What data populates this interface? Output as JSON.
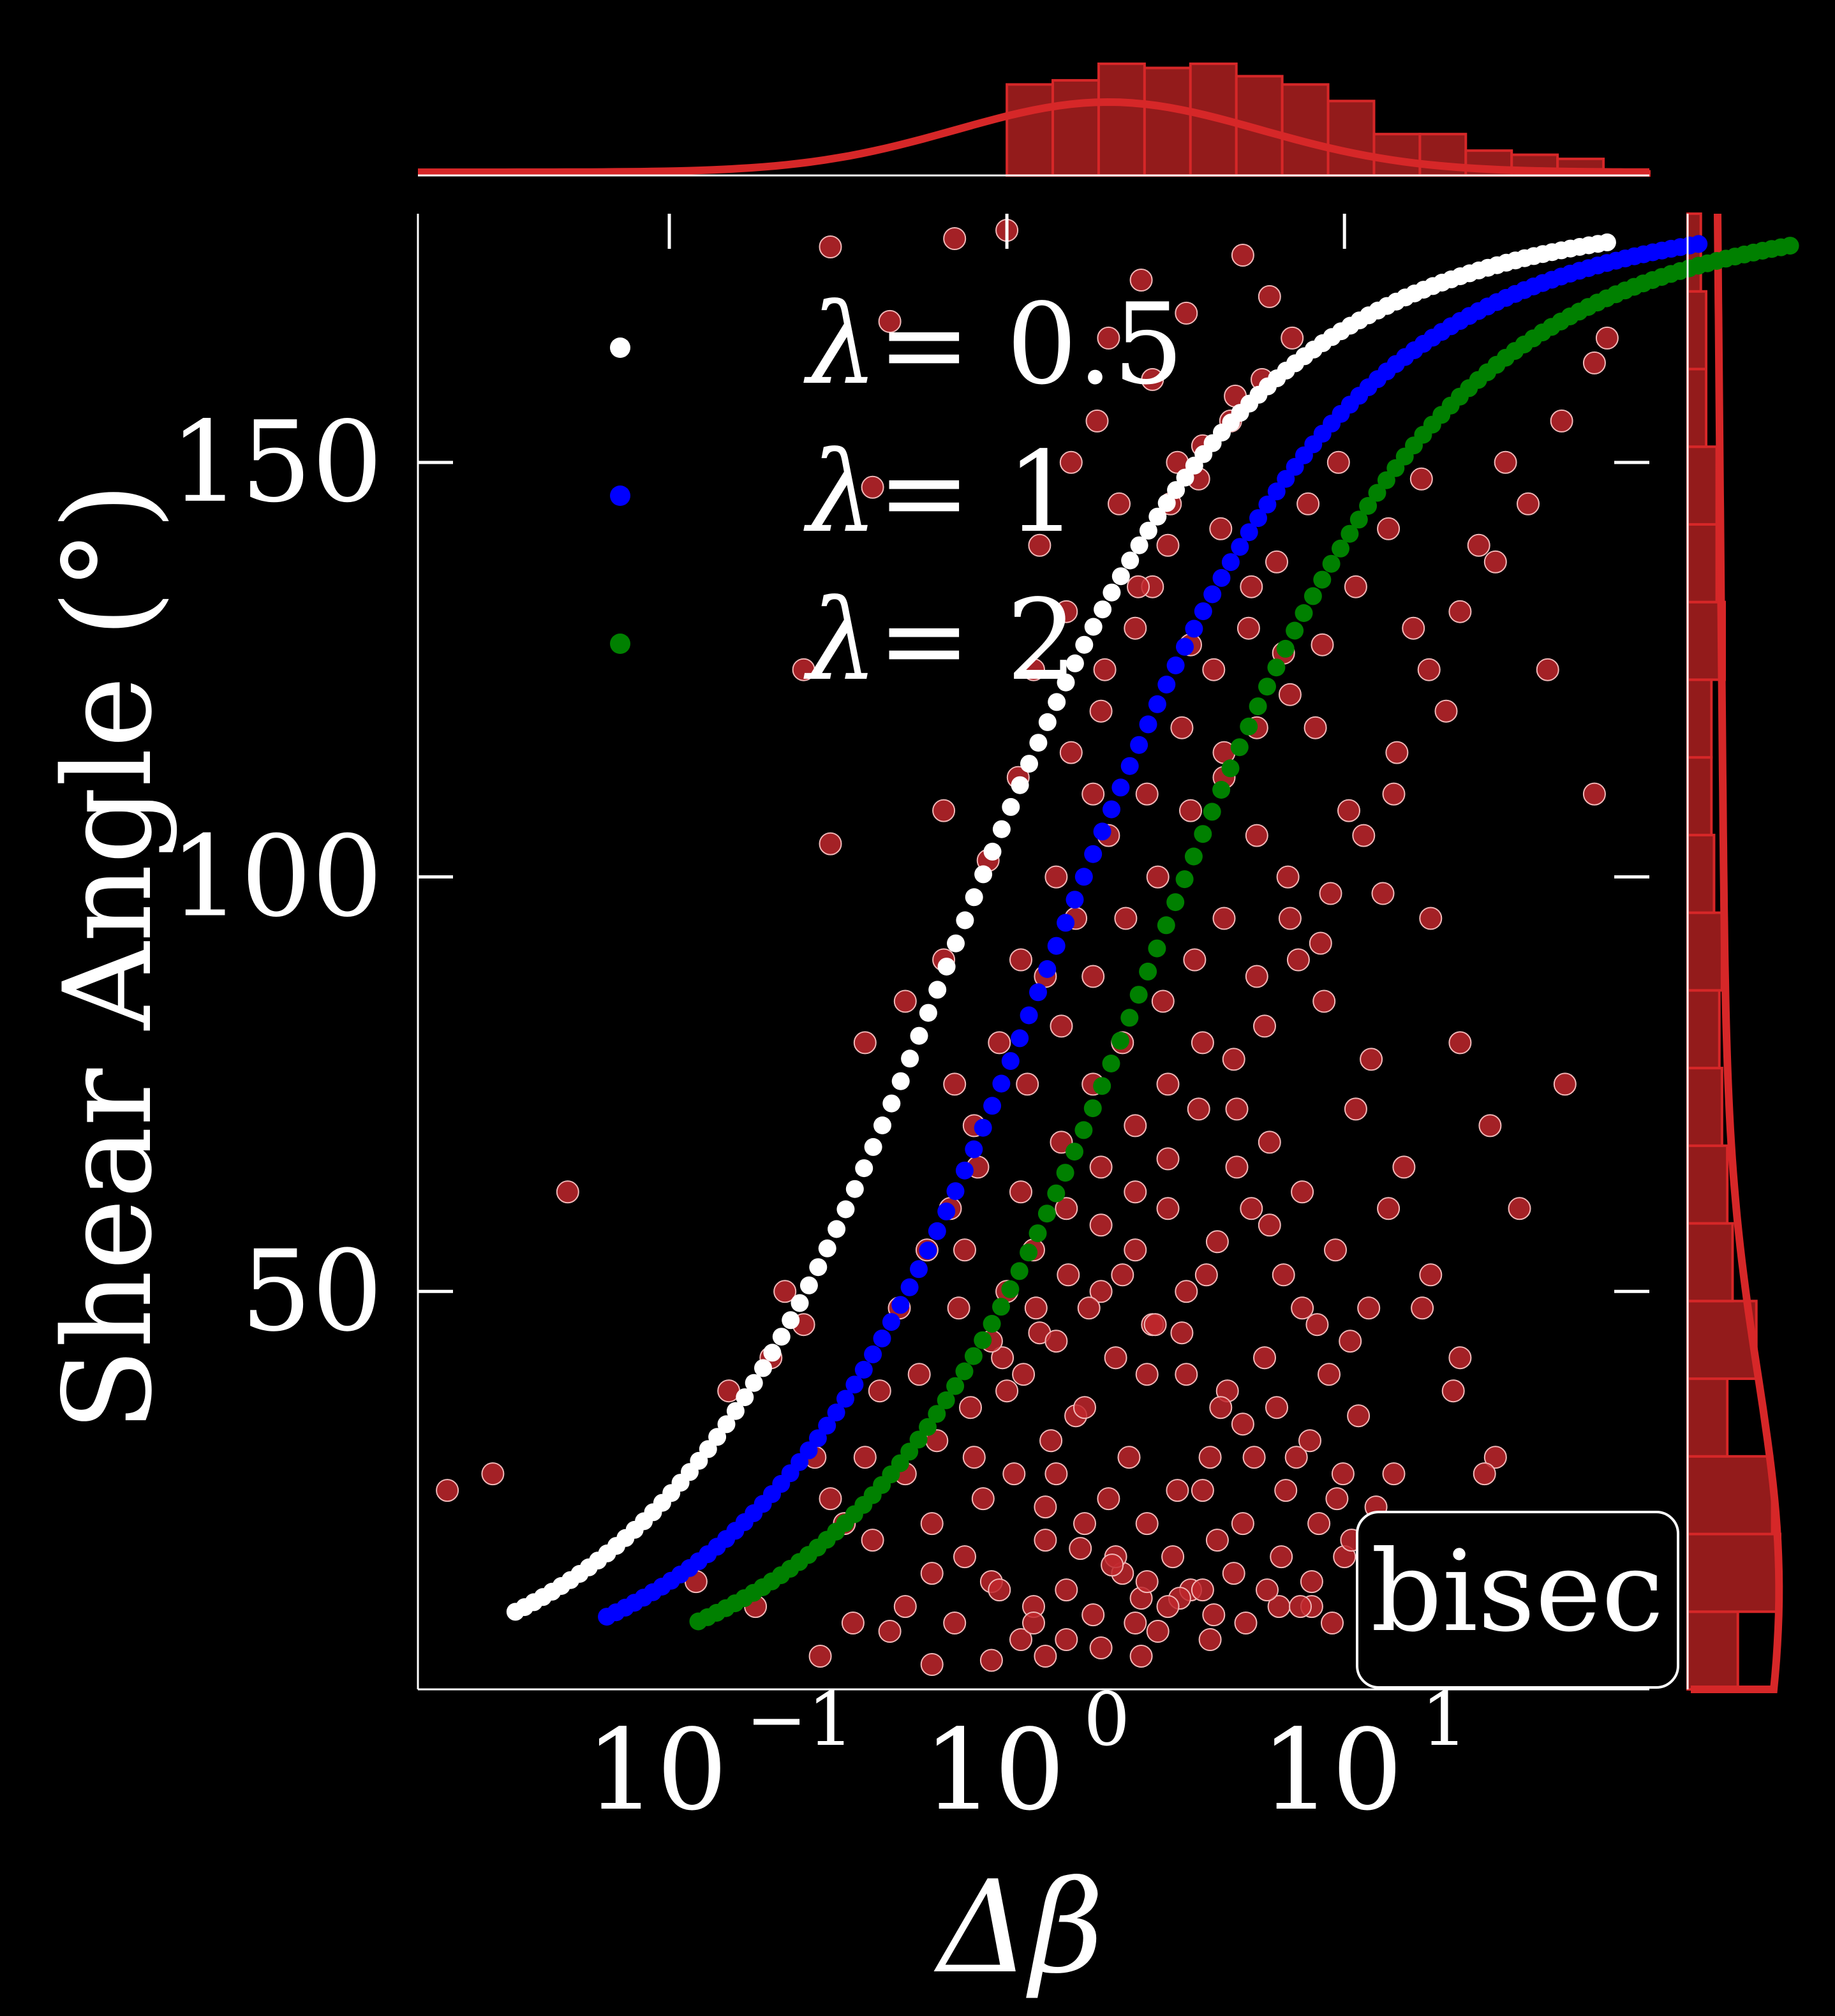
{
  "chart_data": {
    "type": "scatter",
    "xlabel": "Δβ",
    "ylabel": "Shear Angle (°)",
    "x_scale": "log",
    "xlim": [
      0.018,
      80
    ],
    "ylim": [
      2,
      180
    ],
    "x_ticks": [
      {
        "value": 0.1,
        "base": "10",
        "exp": "−1"
      },
      {
        "value": 1,
        "base": "10",
        "exp": "0"
      },
      {
        "value": 10,
        "base": "10",
        "exp": "1"
      }
    ],
    "y_ticks": [
      50,
      100,
      150
    ],
    "annotation": "bisec",
    "legend_position": "upper-left",
    "colors": {
      "background": "#000000",
      "axes": "#ffffff",
      "data_points": "#c1272d",
      "marginal": "#d62728",
      "marginal_fill": "#931b1b"
    },
    "series": [
      {
        "name": "λ = 0.5",
        "label_symbol": "λ",
        "label_value": "= 0.5",
        "color": "#ffffff",
        "lambda": 0.5
      },
      {
        "name": "λ = 1",
        "label_symbol": "λ",
        "label_value": "= 1",
        "color": "#0000ff",
        "lambda": 1
      },
      {
        "name": "λ = 2",
        "label_symbol": "λ",
        "label_value": "= 2",
        "color": "#008000",
        "lambda": 2
      }
    ],
    "scatter_points": [
      [
        1.2,
        12
      ],
      [
        1.5,
        14
      ],
      [
        1.8,
        11
      ],
      [
        2.2,
        16
      ],
      [
        1.3,
        20
      ],
      [
        2.5,
        13
      ],
      [
        3.1,
        18
      ],
      [
        0.9,
        15
      ],
      [
        0.7,
        10
      ],
      [
        1.7,
        22
      ],
      [
        2.0,
        25
      ],
      [
        2.8,
        9
      ],
      [
        3.5,
        14
      ],
      [
        4.2,
        20
      ],
      [
        1.1,
        8
      ],
      [
        0.6,
        16
      ],
      [
        0.5,
        12
      ],
      [
        0.45,
        9
      ],
      [
        1.4,
        28
      ],
      [
        2.3,
        30
      ],
      [
        3.8,
        26
      ],
      [
        5.0,
        22
      ],
      [
        6.5,
        18
      ],
      [
        8.0,
        12
      ],
      [
        1.6,
        35
      ],
      [
        2.6,
        40
      ],
      [
        3.3,
        45
      ],
      [
        4.5,
        38
      ],
      [
        5.8,
        42
      ],
      [
        7.2,
        30
      ],
      [
        9.5,
        25
      ],
      [
        12,
        15
      ],
      [
        0.8,
        30
      ],
      [
        1.0,
        38
      ],
      [
        1.25,
        45
      ],
      [
        1.9,
        50
      ],
      [
        2.4,
        55
      ],
      [
        3.0,
        60
      ],
      [
        3.9,
        52
      ],
      [
        4.8,
        65
      ],
      [
        6.0,
        58
      ],
      [
        7.5,
        48
      ],
      [
        9.0,
        40
      ],
      [
        11,
        35
      ],
      [
        14,
        28
      ],
      [
        0.35,
        10
      ],
      [
        0.28,
        6
      ],
      [
        0.6,
        5
      ],
      [
        0.9,
        5.5
      ],
      [
        1.3,
        6
      ],
      [
        2.5,
        6
      ],
      [
        4.0,
        8
      ],
      [
        0.25,
        46
      ],
      [
        0.3,
        25
      ],
      [
        0.4,
        20
      ],
      [
        0.55,
        40
      ],
      [
        0.75,
        55
      ],
      [
        1.1,
        62
      ],
      [
        1.45,
        68
      ],
      [
        1.8,
        75
      ],
      [
        2.2,
        80
      ],
      [
        2.9,
        85
      ],
      [
        3.6,
        90
      ],
      [
        4.4,
        95
      ],
      [
        5.5,
        88
      ],
      [
        6.8,
        100
      ],
      [
        8.5,
        92
      ],
      [
        1.3,
        88
      ],
      [
        1.6,
        95
      ],
      [
        2.0,
        105
      ],
      [
        2.6,
        110
      ],
      [
        3.3,
        118
      ],
      [
        4.1,
        125
      ],
      [
        5.2,
        130
      ],
      [
        6.3,
        138
      ],
      [
        7.8,
        145
      ],
      [
        9.6,
        150
      ],
      [
        1.9,
        120
      ],
      [
        2.4,
        130
      ],
      [
        3.0,
        140
      ],
      [
        3.7,
        148
      ],
      [
        4.6,
        155
      ],
      [
        5.7,
        160
      ],
      [
        7.0,
        165
      ],
      [
        2.7,
        160
      ],
      [
        3.4,
        168
      ],
      [
        1.8,
        110
      ],
      [
        1.4,
        100
      ],
      [
        1.1,
        90
      ],
      [
        0.95,
        80
      ],
      [
        0.8,
        70
      ],
      [
        0.68,
        60
      ],
      [
        12,
        78
      ],
      [
        15,
        65
      ],
      [
        18,
        52
      ],
      [
        22,
        42
      ],
      [
        28,
        30
      ],
      [
        35,
        20
      ],
      [
        14,
        110
      ],
      [
        18,
        95
      ],
      [
        22,
        80
      ],
      [
        27,
        70
      ],
      [
        33,
        60
      ],
      [
        16,
        130
      ],
      [
        20,
        120
      ],
      [
        25,
        140
      ],
      [
        30,
        150
      ],
      [
        40,
        125
      ],
      [
        45,
        75
      ],
      [
        55,
        110
      ],
      [
        60,
        165
      ],
      [
        0.25,
        125
      ],
      [
        0.3,
        104
      ],
      [
        0.4,
        147
      ],
      [
        0.45,
        167
      ],
      [
        0.5,
        85
      ],
      [
        0.65,
        108
      ],
      [
        0.38,
        80
      ],
      [
        0.05,
        62
      ],
      [
        0.022,
        26
      ],
      [
        0.03,
        28
      ],
      [
        0.15,
        38
      ],
      [
        0.2,
        42
      ],
      [
        0.22,
        50
      ],
      [
        0.27,
        30
      ],
      [
        0.33,
        22
      ],
      [
        0.12,
        15
      ],
      [
        0.18,
        12
      ],
      [
        1.0,
        178
      ],
      [
        0.7,
        177
      ],
      [
        0.3,
        176
      ],
      [
        2.0,
        165
      ],
      [
        2.5,
        172
      ],
      [
        5.0,
        175
      ],
      [
        6.0,
        170
      ],
      [
        3.2,
        150
      ],
      [
        4.3,
        142
      ],
      [
        5.3,
        135
      ],
      [
        6.6,
        127
      ],
      [
        8.2,
        118
      ],
      [
        10.3,
        108
      ],
      [
        13,
        98
      ],
      [
        1.25,
        140
      ],
      [
        1.55,
        150
      ],
      [
        1.85,
        155
      ],
      [
        2.15,
        145
      ],
      [
        2.7,
        135
      ],
      [
        3.5,
        128
      ],
      [
        4.4,
        115
      ],
      [
        5.5,
        105
      ],
      [
        6.9,
        95
      ],
      [
        8.7,
        85
      ],
      [
        10.8,
        72
      ],
      [
        13.5,
        60
      ],
      [
        17,
        48
      ],
      [
        21,
        38
      ],
      [
        26,
        28
      ],
      [
        33,
        22
      ],
      [
        1.0,
        50
      ],
      [
        1.2,
        55
      ],
      [
        1.5,
        60
      ],
      [
        1.9,
        65
      ],
      [
        2.4,
        70
      ],
      [
        3.0,
        75
      ],
      [
        3.8,
        80
      ],
      [
        4.8,
        72
      ],
      [
        6.0,
        68
      ],
      [
        7.5,
        62
      ],
      [
        9.4,
        55
      ],
      [
        11.8,
        48
      ],
      [
        2.1,
        18
      ],
      [
        2.6,
        22
      ],
      [
        3.2,
        26
      ],
      [
        4.0,
        30
      ],
      [
        5.0,
        34
      ],
      [
        6.3,
        36
      ],
      [
        7.9,
        32
      ],
      [
        9.9,
        28
      ],
      [
        12.4,
        24
      ],
      [
        15.5,
        20
      ],
      [
        1.35,
        32
      ],
      [
        1.7,
        36
      ],
      [
        2.1,
        42
      ],
      [
        2.7,
        46
      ],
      [
        3.4,
        50
      ],
      [
        4.2,
        56
      ],
      [
        5.3,
        60
      ],
      [
        6.6,
        52
      ],
      [
        8.3,
        46
      ],
      [
        10.4,
        44
      ],
      [
        0.85,
        25
      ],
      [
        1.05,
        28
      ],
      [
        1.3,
        24
      ],
      [
        1.65,
        19
      ],
      [
        2.05,
        17
      ],
      [
        2.6,
        15
      ],
      [
        3.25,
        13
      ],
      [
        4.1,
        11
      ],
      [
        5.1,
        10
      ],
      [
        6.4,
        12
      ],
      [
        8.0,
        15
      ],
      [
        10,
        18
      ],
      [
        0.6,
        22
      ],
      [
        0.75,
        18
      ],
      [
        0.95,
        14
      ],
      [
        1.2,
        10
      ],
      [
        1.5,
        8
      ],
      [
        1.9,
        7
      ],
      [
        2.4,
        10
      ],
      [
        3.0,
        12
      ],
      [
        3.8,
        14
      ],
      [
        4.7,
        16
      ],
      [
        5.9,
        14
      ],
      [
        7.4,
        12
      ],
      [
        9.2,
        10
      ],
      [
        0.5,
        28
      ],
      [
        0.62,
        32
      ],
      [
        0.78,
        36
      ],
      [
        0.97,
        42
      ],
      [
        1.22,
        48
      ],
      [
        1.52,
        52
      ],
      [
        1.9,
        58
      ],
      [
        2.4,
        62
      ],
      [
        3.0,
        66
      ],
      [
        3.7,
        72
      ],
      [
        4.7,
        78
      ],
      [
        5.8,
        82
      ],
      [
        7.3,
        90
      ],
      [
        9.1,
        98
      ],
      [
        11.4,
        105
      ],
      [
        14.3,
        115
      ],
      [
        17.8,
        125
      ],
      [
        22,
        132
      ],
      [
        28,
        138
      ],
      [
        35,
        145
      ],
      [
        44,
        155
      ],
      [
        55,
        162
      ],
      [
        1.15,
        75
      ],
      [
        1.45,
        82
      ],
      [
        1.8,
        88
      ],
      [
        2.25,
        95
      ],
      [
        2.8,
        100
      ],
      [
        3.5,
        108
      ],
      [
        4.4,
        112
      ],
      [
        5.5,
        118
      ],
      [
        6.9,
        122
      ],
      [
        8.6,
        128
      ],
      [
        10.8,
        135
      ],
      [
        13.5,
        142
      ],
      [
        16.9,
        148
      ],
      [
        0.72,
        48
      ],
      [
        0.9,
        44
      ],
      [
        1.12,
        40
      ],
      [
        1.4,
        44
      ],
      [
        1.75,
        48
      ],
      [
        2.2,
        52
      ],
      [
        2.75,
        46
      ],
      [
        3.4,
        40
      ],
      [
        4.3,
        36
      ],
      [
        5.4,
        30
      ],
      [
        6.7,
        26
      ],
      [
        8.4,
        22
      ],
      [
        10.5,
        20
      ],
      [
        1.55,
        115
      ],
      [
        1.95,
        125
      ],
      [
        2.45,
        135
      ],
      [
        3.05,
        145
      ],
      [
        3.8,
        152
      ],
      [
        4.75,
        158
      ],
      [
        1.2,
        125
      ],
      [
        1.5,
        132
      ],
      [
        0.88,
        102
      ],
      [
        1.08,
        112
      ],
      [
        0.65,
        90
      ],
      [
        0.7,
        75
      ],
      [
        0.82,
        65
      ],
      [
        0.58,
        55
      ],
      [
        0.48,
        48
      ],
      [
        0.42,
        38
      ],
      [
        0.38,
        30
      ]
    ]
  }
}
